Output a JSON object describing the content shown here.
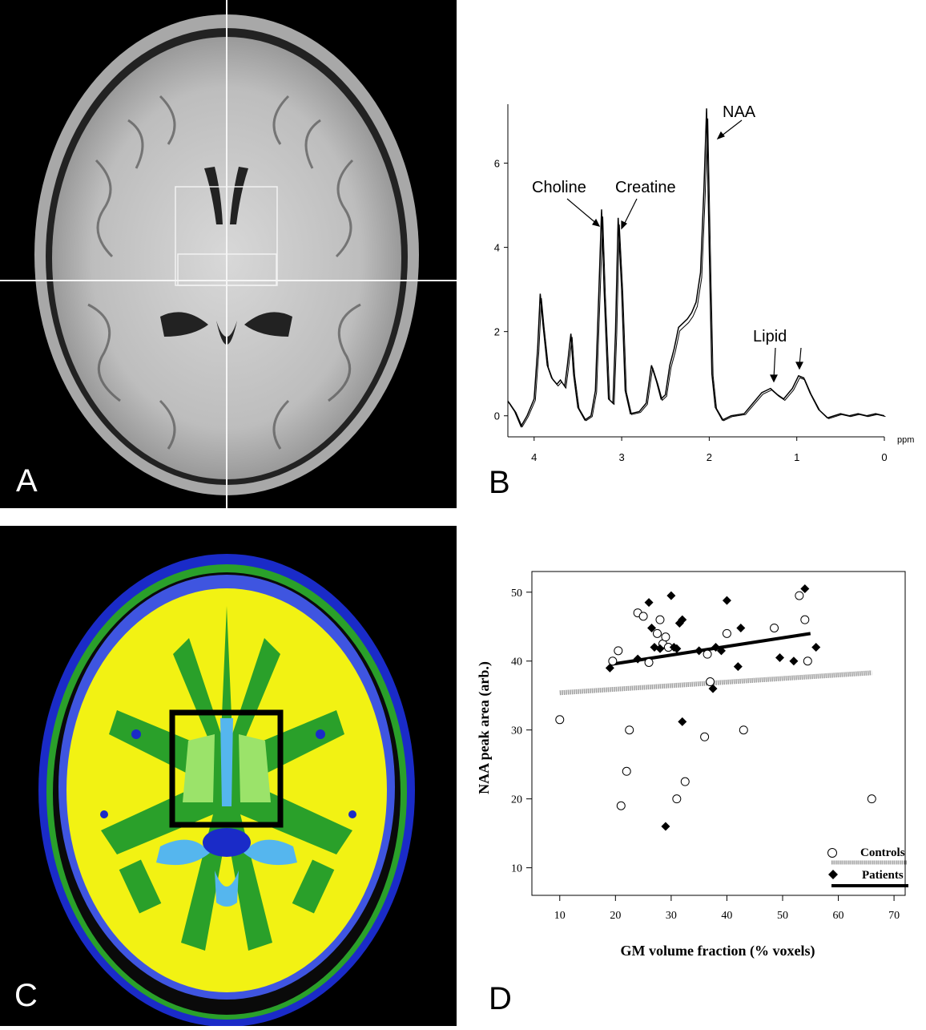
{
  "panels": {
    "a": {
      "letter": "A"
    },
    "b": {
      "letter": "B"
    },
    "c": {
      "letter": "C"
    },
    "d": {
      "letter": "D"
    }
  },
  "spectrum": {
    "type": "line",
    "x_unit": "ppm",
    "x_ticks": [
      "4",
      "3",
      "2",
      "1",
      "0"
    ],
    "y_ticks": [
      "0",
      "2",
      "4",
      "6"
    ],
    "xlim": [
      4.3,
      0
    ],
    "ylim": [
      -0.5,
      7.4
    ],
    "peak_labels": {
      "choline": "Choline",
      "creatine": "Creatine",
      "naa": "NAA",
      "lipid": "Lipid"
    },
    "points": [
      [
        4.3,
        0.35
      ],
      [
        4.22,
        0.1
      ],
      [
        4.15,
        -0.25
      ],
      [
        4.08,
        0.0
      ],
      [
        4.0,
        0.4
      ],
      [
        3.96,
        1.6
      ],
      [
        3.93,
        2.9
      ],
      [
        3.9,
        2.2
      ],
      [
        3.85,
        1.2
      ],
      [
        3.8,
        0.9
      ],
      [
        3.74,
        0.75
      ],
      [
        3.7,
        0.85
      ],
      [
        3.65,
        0.7
      ],
      [
        3.62,
        1.2
      ],
      [
        3.58,
        1.95
      ],
      [
        3.55,
        1.0
      ],
      [
        3.5,
        0.2
      ],
      [
        3.42,
        -0.1
      ],
      [
        3.35,
        0.0
      ],
      [
        3.3,
        0.6
      ],
      [
        3.26,
        3.0
      ],
      [
        3.23,
        4.9
      ],
      [
        3.2,
        3.0
      ],
      [
        3.15,
        0.4
      ],
      [
        3.1,
        0.3
      ],
      [
        3.07,
        2.0
      ],
      [
        3.04,
        4.7
      ],
      [
        3.0,
        3.0
      ],
      [
        2.96,
        0.6
      ],
      [
        2.9,
        0.05
      ],
      [
        2.8,
        0.1
      ],
      [
        2.72,
        0.3
      ],
      [
        2.66,
        1.2
      ],
      [
        2.6,
        0.8
      ],
      [
        2.55,
        0.4
      ],
      [
        2.5,
        0.5
      ],
      [
        2.45,
        1.2
      ],
      [
        2.4,
        1.6
      ],
      [
        2.35,
        2.1
      ],
      [
        2.3,
        2.2
      ],
      [
        2.25,
        2.3
      ],
      [
        2.2,
        2.45
      ],
      [
        2.15,
        2.7
      ],
      [
        2.1,
        3.4
      ],
      [
        2.06,
        5.4
      ],
      [
        2.03,
        7.3
      ],
      [
        2.0,
        4.0
      ],
      [
        1.97,
        1.0
      ],
      [
        1.93,
        0.2
      ],
      [
        1.85,
        -0.1
      ],
      [
        1.75,
        0.0
      ],
      [
        1.6,
        0.05
      ],
      [
        1.5,
        0.3
      ],
      [
        1.4,
        0.55
      ],
      [
        1.3,
        0.65
      ],
      [
        1.22,
        0.5
      ],
      [
        1.15,
        0.4
      ],
      [
        1.05,
        0.65
      ],
      [
        0.98,
        0.95
      ],
      [
        0.92,
        0.9
      ],
      [
        0.85,
        0.55
      ],
      [
        0.75,
        0.15
      ],
      [
        0.65,
        -0.05
      ],
      [
        0.5,
        0.05
      ],
      [
        0.4,
        0.0
      ],
      [
        0.3,
        0.05
      ],
      [
        0.2,
        0.0
      ],
      [
        0.1,
        0.05
      ],
      [
        0.0,
        0.0
      ]
    ]
  },
  "chart_data": {
    "type": "scatter",
    "xlabel": "GM volume fraction (% voxels)",
    "ylabel": "NAA peak area (arb.)",
    "xlim": [
      5,
      72
    ],
    "ylim": [
      6,
      53
    ],
    "x_ticks": [
      "10",
      "20",
      "30",
      "40",
      "50",
      "60",
      "70"
    ],
    "y_ticks": [
      "10",
      "20",
      "30",
      "40",
      "50"
    ],
    "legend_position": "bottom-right",
    "series": [
      {
        "name": "Controls",
        "marker": "open-circle",
        "points": [
          [
            10,
            31.5
          ],
          [
            19.5,
            40
          ],
          [
            20.5,
            41.5
          ],
          [
            21,
            19
          ],
          [
            22,
            24
          ],
          [
            22.5,
            30
          ],
          [
            24,
            47
          ],
          [
            25,
            46.5
          ],
          [
            26,
            39.8
          ],
          [
            27.5,
            44
          ],
          [
            28,
            46
          ],
          [
            28.5,
            42.5
          ],
          [
            29,
            43.5
          ],
          [
            29.5,
            42
          ],
          [
            31,
            20
          ],
          [
            32.5,
            22.5
          ],
          [
            36,
            29
          ],
          [
            36.5,
            41
          ],
          [
            37,
            37
          ],
          [
            40,
            44
          ],
          [
            43,
            30
          ],
          [
            48.5,
            44.8
          ],
          [
            53,
            49.5
          ],
          [
            54,
            46
          ],
          [
            54.5,
            40
          ],
          [
            66,
            20
          ]
        ],
        "trend": [
          [
            10,
            35.4
          ],
          [
            66,
            38.3
          ]
        ]
      },
      {
        "name": "Patients",
        "marker": "filled-diamond",
        "points": [
          [
            19,
            39
          ],
          [
            24,
            40.3
          ],
          [
            26,
            48.5
          ],
          [
            26.5,
            44.8
          ],
          [
            27,
            42
          ],
          [
            28,
            41.8
          ],
          [
            30,
            49.5
          ],
          [
            30.5,
            42
          ],
          [
            31,
            41.8
          ],
          [
            31.5,
            45.5
          ],
          [
            32,
            46
          ],
          [
            32,
            31.2
          ],
          [
            29,
            16
          ],
          [
            35,
            41.5
          ],
          [
            37.5,
            36
          ],
          [
            38,
            42
          ],
          [
            39,
            41.5
          ],
          [
            40,
            48.8
          ],
          [
            42,
            39.2
          ],
          [
            42.5,
            44.8
          ],
          [
            49.5,
            40.5
          ],
          [
            52,
            40
          ],
          [
            54,
            50.5
          ],
          [
            56,
            42
          ]
        ],
        "trend": [
          [
            19,
            39.5
          ],
          [
            55,
            44
          ]
        ]
      }
    ]
  }
}
